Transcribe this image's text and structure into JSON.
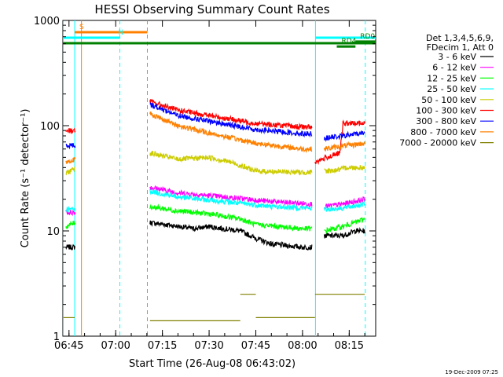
{
  "chart_data": {
    "type": "line",
    "title": "HESSI Observing Summary Count Rates",
    "xlabel": "Start Time (26-Aug-08 06:43:02)",
    "ylabel": "Count Rate (s⁻¹ detector⁻¹)",
    "x_ticks": [
      "06:45",
      "07:00",
      "07:15",
      "07:30",
      "07:45",
      "08:00",
      "08:15"
    ],
    "y_ticks": [
      "1",
      "10",
      "100",
      "1000"
    ],
    "y_scale": "log",
    "ylim": [
      1,
      1000
    ],
    "xlim": [
      "06:43:02",
      "08:23:30"
    ],
    "legend_header": [
      "Det 1,3,4,5,6,9,",
      "FDecim 1, Att 0"
    ],
    "legend_position": "right",
    "footer": "19-Dec-2009 07:25",
    "series": [
      {
        "name": "3 - 6 keV",
        "color": "#000000",
        "segments": [
          {
            "x": [
              "06:44:00",
              "06:47:00"
            ],
            "y": [
              7,
              7
            ]
          },
          {
            "x": [
              "07:11:00",
              "07:16:00",
              "07:25:00",
              "07:30:00",
              "07:40:00",
              "07:45:00",
              "07:50:00",
              "08:00:00",
              "08:03:00"
            ],
            "y": [
              12,
              11.5,
              10.5,
              11,
              10,
              8.5,
              7.5,
              7,
              7
            ]
          },
          {
            "x": [
              "08:07:00",
              "08:13:00",
              "08:17:00",
              "08:20:00"
            ],
            "y": [
              9,
              9,
              10,
              10
            ]
          }
        ]
      },
      {
        "name": "6 - 12 keV",
        "color": "#ff00ff",
        "segments": [
          {
            "x": [
              "06:44:00",
              "06:47:00"
            ],
            "y": [
              15,
              15
            ]
          },
          {
            "x": [
              "07:11:00",
              "07:20:00",
              "07:35:00",
              "07:50:00",
              "08:03:00"
            ],
            "y": [
              26,
              23,
              21,
              19,
              18
            ]
          },
          {
            "x": [
              "08:07:00",
              "08:13:00",
              "08:20:00"
            ],
            "y": [
              17,
              18,
              20
            ]
          }
        ]
      },
      {
        "name": "12 - 25 keV",
        "color": "#00ff00",
        "segments": [
          {
            "x": [
              "06:44:00",
              "06:47:00"
            ],
            "y": [
              11,
              12
            ]
          },
          {
            "x": [
              "07:11:00",
              "07:20:00",
              "07:30:00",
              "07:40:00",
              "07:45:00",
              "08:00:00",
              "08:03:00"
            ],
            "y": [
              17,
              15.5,
              14.5,
              13,
              11.5,
              10.5,
              10.5
            ]
          },
          {
            "x": [
              "08:07:00",
              "08:13:00",
              "08:20:00"
            ],
            "y": [
              10,
              11,
              13
            ]
          }
        ]
      },
      {
        "name": "25 - 50 keV",
        "color": "#00ffff",
        "segments": [
          {
            "x": [
              "06:44:00",
              "06:47:00"
            ],
            "y": [
              16,
              16
            ]
          },
          {
            "x": [
              "07:11:00",
              "07:20:00",
              "07:35:00",
              "07:50:00",
              "08:03:00"
            ],
            "y": [
              24,
              21,
              19,
              17,
              16.5
            ]
          },
          {
            "x": [
              "08:07:00",
              "08:13:00",
              "08:20:00"
            ],
            "y": [
              16,
              16.5,
              18
            ]
          }
        ]
      },
      {
        "name": "50 - 100 keV",
        "color": "#cccc00",
        "segments": [
          {
            "x": [
              "06:44:00",
              "06:47:00"
            ],
            "y": [
              35,
              40
            ]
          },
          {
            "x": [
              "07:11:00",
              "07:20:00",
              "07:30:00",
              "07:37:00",
              "07:45:00",
              "08:00:00",
              "08:03:00"
            ],
            "y": [
              55,
              48,
              50,
              45,
              37,
              36,
              36
            ]
          },
          {
            "x": [
              "08:07:00",
              "08:12:00",
              "08:14:00",
              "08:20:00"
            ],
            "y": [
              37,
              38,
              40,
              40
            ]
          }
        ]
      },
      {
        "name": "100 - 300 keV",
        "color": "#ff0000",
        "segments": [
          {
            "x": [
              "06:44:00",
              "06:47:00"
            ],
            "y": [
              90,
              90
            ]
          },
          {
            "x": [
              "07:11:00",
              "07:20:00",
              "07:30:00",
              "07:45:00",
              "08:00:00",
              "08:03:00"
            ],
            "y": [
              170,
              140,
              125,
              105,
              97,
              97
            ]
          },
          {
            "x": [
              "08:04:00",
              "08:08:00",
              "08:12:00",
              "08:13:00",
              "08:20:00"
            ],
            "y": [
              45,
              50,
              55,
              105,
              105
            ]
          }
        ]
      },
      {
        "name": "300 - 800 keV",
        "color": "#0000ff",
        "segments": [
          {
            "x": [
              "06:44:00",
              "06:47:00"
            ],
            "y": [
              65,
              65
            ]
          },
          {
            "x": [
              "07:11:00",
              "07:20:00",
              "07:30:00",
              "07:45:00",
              "08:00:00",
              "08:03:00"
            ],
            "y": [
              160,
              125,
              110,
              92,
              84,
              84
            ]
          },
          {
            "x": [
              "08:07:00",
              "08:13:00",
              "08:20:00"
            ],
            "y": [
              76,
              80,
              86
            ]
          }
        ]
      },
      {
        "name": "800 - 7000 keV",
        "color": "#ff8000",
        "segments": [
          {
            "x": [
              "06:44:00",
              "06:47:00"
            ],
            "y": [
              45,
              48
            ]
          },
          {
            "x": [
              "07:11:00",
              "07:20:00",
              "07:30:00",
              "07:45:00",
              "08:00:00",
              "08:03:00"
            ],
            "y": [
              130,
              100,
              85,
              68,
              60,
              60
            ]
          },
          {
            "x": [
              "08:07:00",
              "08:13:00",
              "08:20:00"
            ],
            "y": [
              60,
              64,
              68
            ]
          }
        ]
      },
      {
        "name": "7000 - 20000 keV",
        "color": "#808000",
        "segments": [
          {
            "x": [
              "06:43:10",
              "06:46:50"
            ],
            "y": [
              1.5,
              1.5
            ]
          },
          {
            "x": [
              "07:11:00",
              "07:40:00"
            ],
            "y": [
              1.4,
              1.4
            ]
          },
          {
            "x": [
              "07:40:00",
              "07:45:00"
            ],
            "y": [
              2.5,
              2.5
            ]
          },
          {
            "x": [
              "07:45:00",
              "08:04:00"
            ],
            "y": [
              1.5,
              1.5
            ]
          },
          {
            "x": [
              "08:04:00",
              "08:20:00"
            ],
            "y": [
              2.5,
              2.5
            ]
          }
        ]
      }
    ],
    "vertical_markers": [
      {
        "x": "06:43:10",
        "color": "#00ffff",
        "style": "solid"
      },
      {
        "x": "06:46:50",
        "color": "#00ffff",
        "style": "solid"
      },
      {
        "x": "07:01:20",
        "color": "#00ffff",
        "style": "dashed"
      },
      {
        "x": "07:10:10",
        "color": "#ff8000",
        "style": "dashed"
      },
      {
        "x": "08:04:10",
        "color": "#00ffff",
        "style": "solid"
      },
      {
        "x": "08:20:10",
        "color": "#00ffff",
        "style": "dashed"
      },
      {
        "x": "06:49:00",
        "color": "#ff8000",
        "style": "solid"
      }
    ],
    "flag_bars": [
      {
        "label": "S",
        "color": "#ff8000",
        "start": "06:46:50",
        "end": "07:10:10",
        "level": 1
      },
      {
        "label": "N",
        "color": "#00ffff",
        "start": "06:43:10",
        "end": "07:01:20",
        "level": 2
      },
      {
        "label": "",
        "color": "#00ffff",
        "start": "08:04:10",
        "end": "08:23:30",
        "level": 2
      },
      {
        "label": "RD0",
        "color": "#008000",
        "start": "08:17:00",
        "end": "08:23:30",
        "level": 2.7
      },
      {
        "label": "",
        "color": "#008000",
        "start": "06:43:02",
        "end": "08:23:30",
        "level": 3
      },
      {
        "label": "RD4",
        "color": "#008000",
        "start": "08:11:00",
        "end": "08:17:00",
        "level": 3.6
      }
    ]
  }
}
